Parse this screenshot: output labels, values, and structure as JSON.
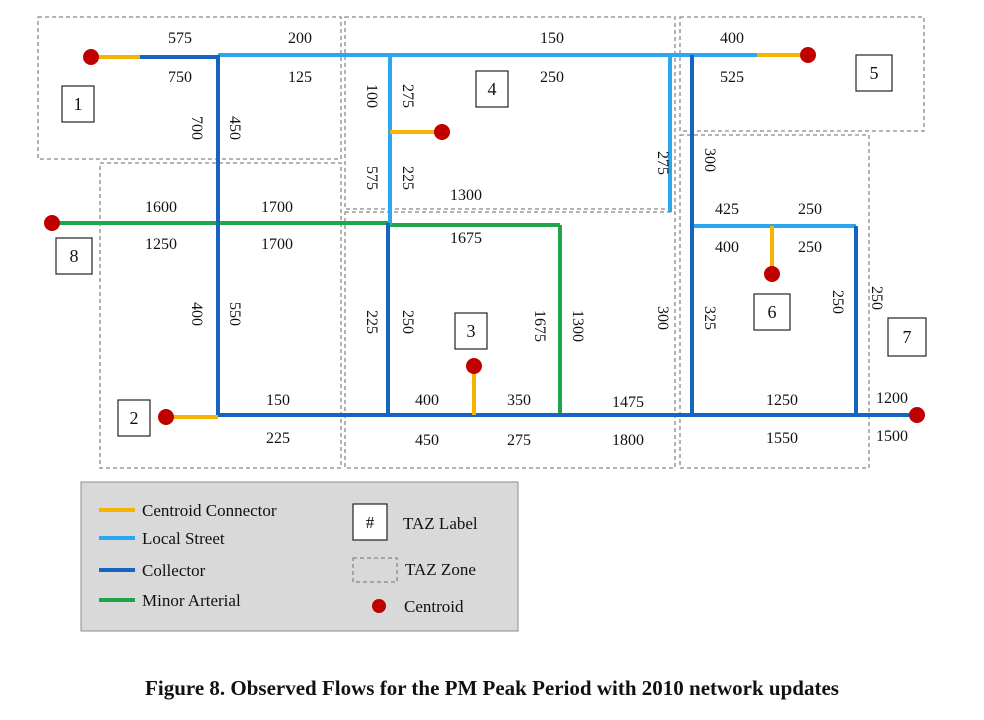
{
  "caption": "Figure 8. Observed Flows for the PM Peak Period with 2010 network updates",
  "colors": {
    "centroid_connector": "#f5b400",
    "local_street": "#2aa7ee",
    "collector": "#1565c0",
    "minor_arterial": "#20a548",
    "centroid": "#c00000",
    "zone_border": "#888888",
    "legend_bg": "#d9d9d9"
  },
  "legend": {
    "centroid_connector": "Centroid Connector",
    "local_street": "Local Street",
    "collector": "Collector",
    "minor_arterial": "Minor Arterial",
    "taz_label_symbol": "#",
    "taz_label": "TAZ Label",
    "taz_zone": "TAZ Zone",
    "centroid": "Centroid"
  },
  "taz_labels": [
    "1",
    "2",
    "3",
    "4",
    "5",
    "6",
    "7",
    "8"
  ],
  "flows": {
    "z1_top_left": "575",
    "z1_bot_left": "750",
    "z1_top_right": "200",
    "z1_bot_right": "125",
    "z1_v700": "700",
    "z1_v450": "450",
    "z4_top": "150",
    "z4_bot": "250",
    "z4_v100": "100",
    "z4_v275": "275",
    "z4_v575": "575",
    "z4_v225": "225",
    "z4_h1300": "1300",
    "z4_v275_right": "275",
    "z5_top": "400",
    "z5_bot": "525",
    "z8_top_left": "1600",
    "z8_bot_left": "1250",
    "z8_top_right": "1700",
    "z8_bot_right": "1700",
    "z2_v400": "400",
    "z2_v550": "550",
    "z2_top": "150",
    "z2_bot": "225",
    "z3_h1675": "1675",
    "z3_v225": "225",
    "z3_v250": "250",
    "z3_v1675": "1675",
    "z3_v1300": "1300",
    "z3_v300": "300",
    "z3_b400": "400",
    "z3_b350": "350",
    "z3_b1475": "1475",
    "z3_b450": "450",
    "z3_b275": "275",
    "z3_b1800": "1800",
    "z6_v300": "300",
    "z6_t425": "425",
    "z6_t250": "250",
    "z6_m400": "400",
    "z6_m250": "250",
    "z6_v325": "325",
    "z6_v250": "250",
    "z7_v250": "250",
    "z6_b1250": "1250",
    "z6_b1550": "1550",
    "z7_b1200": "1200",
    "z7_b1500": "1500"
  }
}
